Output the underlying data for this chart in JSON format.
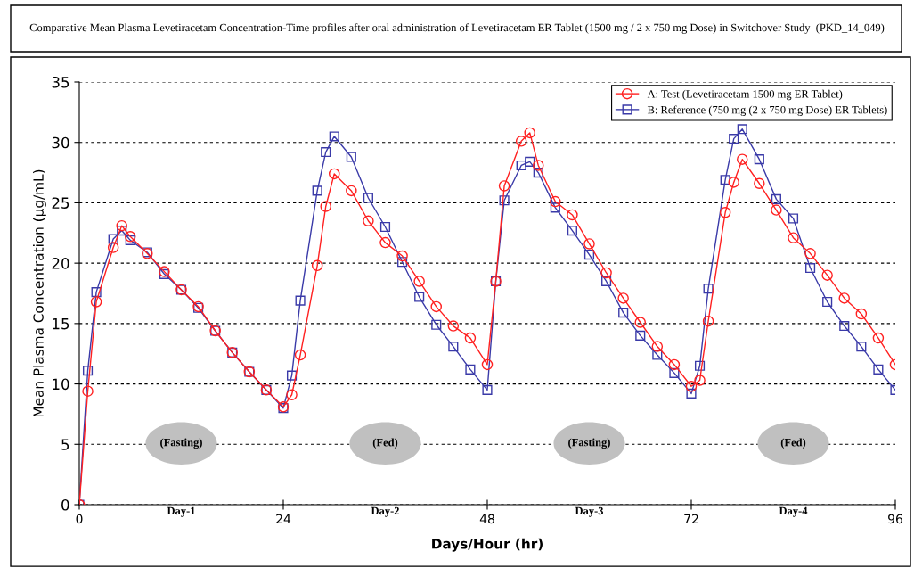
{
  "chart_data": {
    "type": "line",
    "title": "Comparative Mean Plasma Levetiracetam Concentration-Time profiles after oral administration of Levetiracetam ER Tablet (1500 mg / 2 x 750 mg Dose) in Switchover Study  (PKD_14_049)",
    "xlabel": "Days/Hour (hr)",
    "ylabel": "Mean Plasma Concentration (µg/mL)",
    "x": [
      0,
      1,
      2,
      4,
      5,
      6,
      8,
      10,
      12,
      14,
      16,
      18,
      20,
      22,
      24,
      25,
      26,
      28,
      29,
      30,
      32,
      34,
      36,
      38,
      40,
      42,
      44,
      46,
      48,
      49,
      50,
      52,
      53,
      54,
      56,
      58,
      60,
      62,
      64,
      66,
      68,
      70,
      72,
      73,
      74,
      76,
      77,
      78,
      80,
      82,
      84,
      86,
      88,
      90,
      92,
      94,
      96
    ],
    "series": [
      {
        "name": "A: Test (Levetiracetam 1500 mg ER Tablet)",
        "color": "#ff2020",
        "marker": "circle",
        "values": [
          0,
          9.4,
          16.8,
          21.3,
          23.1,
          22.2,
          20.8,
          19.3,
          17.8,
          16.4,
          14.4,
          12.6,
          11.0,
          9.5,
          8.1,
          9.1,
          12.4,
          19.8,
          24.7,
          27.4,
          26.0,
          23.5,
          21.7,
          20.6,
          18.5,
          16.4,
          14.8,
          13.8,
          11.6,
          18.5,
          26.4,
          30.1,
          30.8,
          28.1,
          25.1,
          24.0,
          21.6,
          19.2,
          17.1,
          15.1,
          13.1,
          11.6,
          9.8,
          10.3,
          15.2,
          24.2,
          26.7,
          28.6,
          26.6,
          24.4,
          22.1,
          20.8,
          19.0,
          17.1,
          15.8,
          13.8,
          11.6
        ]
      },
      {
        "name": "B: Reference (750 mg (2 x 750 mg Dose) ER Tablets)",
        "color": "#3a3aa8",
        "marker": "square",
        "values": [
          0,
          11.1,
          17.6,
          22.0,
          22.7,
          21.9,
          20.9,
          19.1,
          17.8,
          16.3,
          14.4,
          12.6,
          11.0,
          9.5,
          8.0,
          10.7,
          16.9,
          26.0,
          29.2,
          30.5,
          28.8,
          25.4,
          23.0,
          20.1,
          17.2,
          14.9,
          13.1,
          11.2,
          9.5,
          18.5,
          25.2,
          28.1,
          28.4,
          27.5,
          24.6,
          22.7,
          20.7,
          18.5,
          15.9,
          14.0,
          12.4,
          10.9,
          9.2,
          11.5,
          17.9,
          26.9,
          30.3,
          31.1,
          28.6,
          25.3,
          23.7,
          19.6,
          16.8,
          14.8,
          13.1,
          11.2,
          9.5
        ]
      }
    ],
    "xlim": [
      0,
      96
    ],
    "xticks": [
      0,
      24,
      48,
      72,
      96
    ],
    "ylim": [
      0,
      35
    ],
    "yticks": [
      0,
      5,
      10,
      15,
      20,
      25,
      30,
      35
    ],
    "grid": "y",
    "legend": "top right",
    "line_style": "solid",
    "annotations": [
      "(Fasting)",
      "(Fed)",
      "(Fasting)",
      "(Fed)",
      "Day-1",
      "Day-2",
      "Day-3",
      "Day-4"
    ]
  }
}
